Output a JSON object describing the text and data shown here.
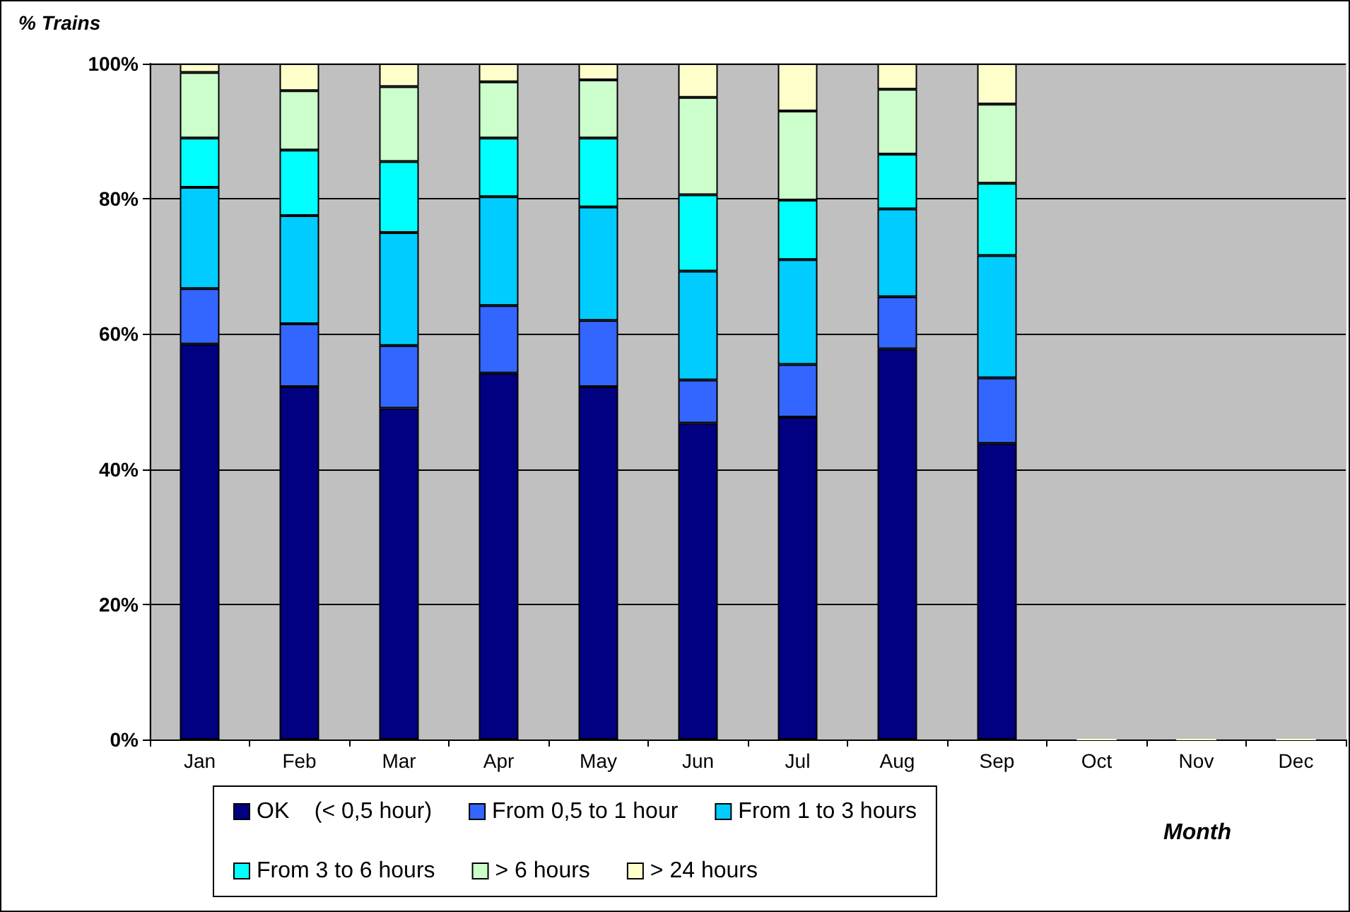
{
  "chart_data": {
    "type": "bar",
    "stacked": true,
    "ylabel": "% Trains",
    "xlabel": "Month",
    "categories": [
      "Jan",
      "Feb",
      "Mar",
      "Apr",
      "May",
      "Jun",
      "Jul",
      "Aug",
      "Sep",
      "Oct",
      "Nov",
      "Dec"
    ],
    "series": [
      {
        "name": "OK    (< 0,5 hour)",
        "color": "#000080",
        "values": [
          58.5,
          52.2,
          49,
          54.2,
          52.2,
          46.8,
          47.7,
          57.8,
          43.8,
          0,
          0,
          0
        ]
      },
      {
        "name": "From 0,5 to 1 hour",
        "color": "#3366ff",
        "values": [
          8.2,
          9.3,
          9.3,
          10,
          9.8,
          6.4,
          7.8,
          7.7,
          9.7,
          0,
          0,
          0
        ]
      },
      {
        "name": "From 1 to 3 hours",
        "color": "#00ccff",
        "values": [
          15,
          16,
          16.7,
          16.1,
          16.8,
          16.1,
          15.5,
          13,
          18.1,
          0,
          0,
          0
        ]
      },
      {
        "name": "From 3 to 6 hours",
        "color": "#00ffff",
        "values": [
          7.3,
          9.7,
          10.5,
          8.7,
          10.2,
          11.3,
          8.8,
          8.1,
          10.7,
          0,
          0,
          0
        ]
      },
      {
        "name": "> 6 hours",
        "color": "#ccffcc",
        "values": [
          9.7,
          8.8,
          11.1,
          8.3,
          8.6,
          14.4,
          13.2,
          9.6,
          11.7,
          0,
          0,
          0
        ]
      },
      {
        "name": "> 24 hours",
        "color": "#ffffcc",
        "values": [
          1.3,
          4,
          3.4,
          2.7,
          2.4,
          5,
          7,
          3.8,
          6,
          0,
          0,
          0
        ]
      }
    ],
    "ylim": [
      0,
      100
    ],
    "yticks": [
      {
        "value": 0,
        "label": "0%"
      },
      {
        "value": 20,
        "label": "20%"
      },
      {
        "value": 40,
        "label": "40%"
      },
      {
        "value": 60,
        "label": "60%"
      },
      {
        "value": 80,
        "label": "80%"
      },
      {
        "value": 100,
        "label": "100%"
      }
    ],
    "grid": "y",
    "legend": "bottom"
  }
}
